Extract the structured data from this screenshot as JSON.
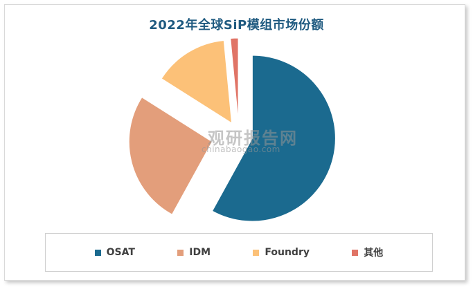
{
  "chart_data": {
    "type": "pie",
    "title": "2022年全球SiP模组市场份额",
    "exploded": true,
    "legend_position": "bottom",
    "slices": [
      {
        "name": "OSAT",
        "value": 58,
        "color": "#1b6a8f"
      },
      {
        "name": "IDM",
        "value": 26,
        "color": "#e39e7b"
      },
      {
        "name": "Foundry",
        "value": 14.5,
        "color": "#fcc178"
      },
      {
        "name": "其他",
        "value": 1.5,
        "color": "#e07466"
      }
    ]
  },
  "watermark": {
    "cn": "观研报告网",
    "en": "chinabaogao.com"
  }
}
